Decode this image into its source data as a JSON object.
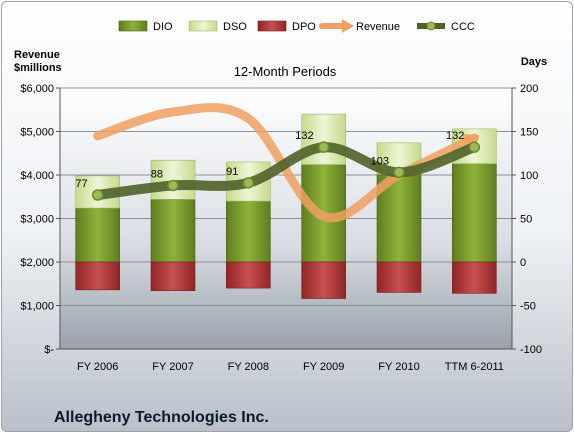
{
  "chart_data": {
    "type": "bar",
    "title": "12-Month Periods",
    "company": "Allegheny Technologies Inc.",
    "ylabel_left": [
      "Revenue",
      "$millions"
    ],
    "ylabel_right": "Days",
    "categories": [
      "FY 2006",
      "FY 2007",
      "FY 2008",
      "FY 2009",
      "FY 2010",
      "TTM 6-2011"
    ],
    "left_axis": {
      "min": 0,
      "max": 6000,
      "step": 1000,
      "tick_labels": [
        "$-",
        "$1,000",
        "$2,000",
        "$3,000",
        "$4,000",
        "$5,000",
        "$6,000"
      ]
    },
    "right_axis": {
      "min": -100,
      "max": 200,
      "step": 50
    },
    "grid": true,
    "legend_position": "top",
    "legend": [
      "DIO",
      "DSO",
      "DPO",
      "Revenue",
      "CCC"
    ],
    "colors": {
      "DIO": "#7a9a2e",
      "DSO": "#dcebb4",
      "DPO": "#b23a3a",
      "Revenue": "#f0a060",
      "CCC": "#4f6228"
    },
    "series": [
      {
        "name": "DIO",
        "axis": "right",
        "values": [
          62,
          72,
          70,
          112,
          101,
          113
        ]
      },
      {
        "name": "DSO",
        "axis": "right",
        "values": [
          37,
          45,
          45,
          58,
          36,
          40
        ]
      },
      {
        "name": "DPO",
        "axis": "right",
        "values": [
          -32,
          -33,
          -30,
          -42,
          -35,
          -36
        ]
      },
      {
        "name": "Revenue",
        "axis": "left",
        "values": [
          4900,
          5450,
          5300,
          3050,
          4000,
          4850
        ]
      },
      {
        "name": "CCC",
        "axis": "right",
        "values": [
          77,
          88,
          91,
          132,
          103,
          132
        ]
      }
    ],
    "ccc_labels": [
      "77",
      "88",
      "91",
      "132",
      "103",
      "132"
    ]
  }
}
